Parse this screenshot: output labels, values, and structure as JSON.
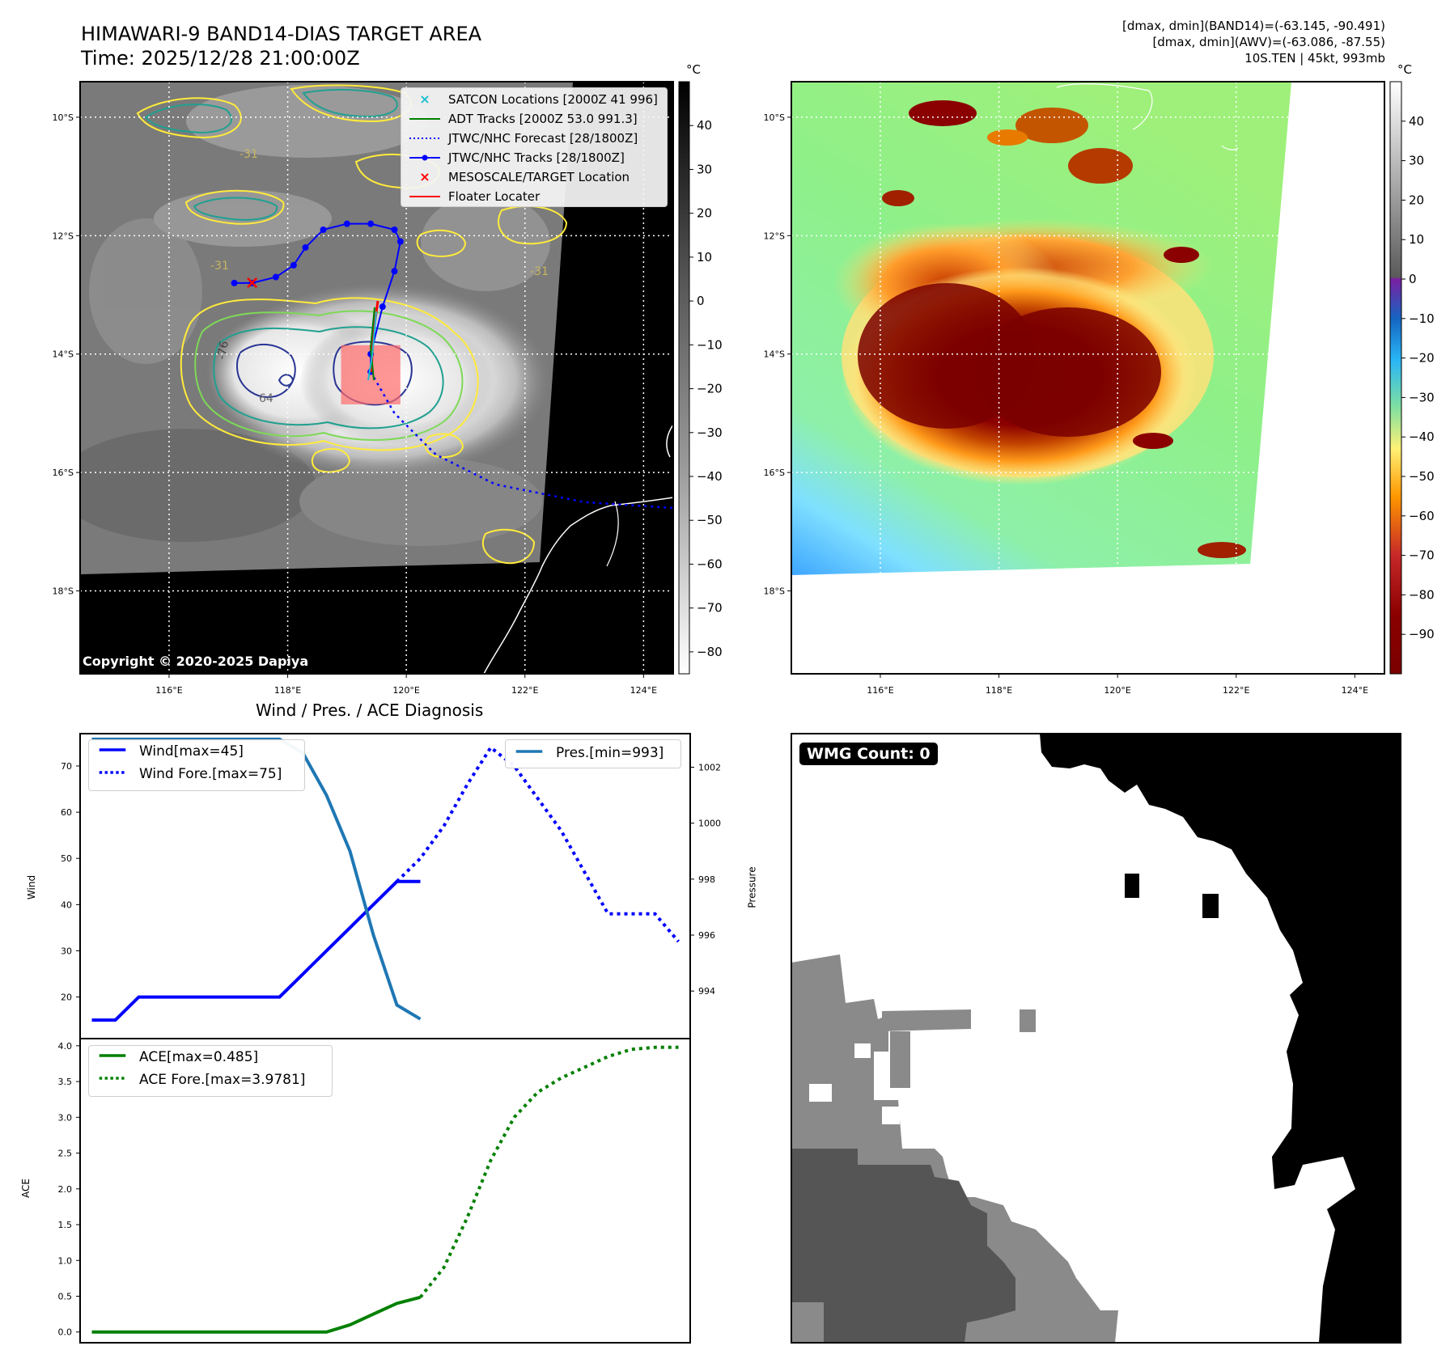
{
  "header": {
    "title_line1": "HIMAWARI-9 BAND14-DIAS TARGET AREA",
    "title_line2": "Time: 2025/12/28 21:00:00Z",
    "info_line1": "[dmax, dmin](BAND14)=(-63.145, -90.491)",
    "info_line2": "[dmax, dmin](AWV)=(-63.086, -87.55)",
    "info_line3": "10S.TEN | 45kt, 993mb"
  },
  "map_axes": {
    "lat_labels": [
      "10°S",
      "12°S",
      "14°S",
      "16°S",
      "18°S"
    ],
    "lon_labels": [
      "116°E",
      "118°E",
      "120°E",
      "122°E",
      "124°E"
    ],
    "lat_ticks": [
      -10,
      -12,
      -14,
      -16,
      -18
    ],
    "lon_ticks": [
      116,
      118,
      120,
      122,
      124
    ],
    "lon_range": [
      114.5,
      124.5
    ],
    "lat_range": [
      -9.4,
      -19.4
    ]
  },
  "ir_panel": {
    "copyright": "Copyright © 2020-2025 Dapiya",
    "colorbar_unit": "°C",
    "colorbar_ticks": [
      "40",
      "30",
      "20",
      "10",
      "0",
      "−10",
      "−20",
      "−30",
      "−40",
      "−50",
      "−60",
      "−70",
      "−80"
    ],
    "colorbar_values": [
      40,
      30,
      20,
      10,
      0,
      -10,
      -20,
      -30,
      -40,
      -50,
      -60,
      -70,
      -80
    ],
    "colorbar_range": [
      50,
      -85
    ],
    "contour_labels": [
      "-76",
      "-64",
      "-31",
      "-31",
      "-31",
      "-31",
      "-76"
    ],
    "legend": [
      {
        "label": "SATCON Locations [2000Z 41 996]",
        "color": "#17becf"
      },
      {
        "label": "ADT Tracks [2000Z 53.0 991.3]",
        "color": "#008000"
      },
      {
        "label": "JTWC/NHC Forecast [28/1800Z]",
        "color": "#0000ff"
      },
      {
        "label": "JTWC/NHC Tracks [28/1800Z]",
        "color": "#0000ff"
      },
      {
        "label": "MESOSCALE/TARGET Location",
        "color": "#ff0000"
      },
      {
        "label": "Floater Locater",
        "color": "#ff0000"
      }
    ],
    "track_jtwc": [
      [
        117.1,
        -12.8
      ],
      [
        117.4,
        -12.8
      ],
      [
        117.8,
        -12.7
      ],
      [
        118.1,
        -12.5
      ],
      [
        118.3,
        -12.2
      ],
      [
        118.6,
        -11.9
      ],
      [
        119.0,
        -11.8
      ],
      [
        119.4,
        -11.8
      ],
      [
        119.8,
        -11.9
      ],
      [
        119.9,
        -12.1
      ],
      [
        119.8,
        -12.6
      ],
      [
        119.6,
        -13.2
      ],
      [
        119.4,
        -14.0
      ],
      [
        119.4,
        -14.3
      ]
    ],
    "track_forecast": [
      [
        119.4,
        -14.3
      ],
      [
        119.8,
        -15.0
      ],
      [
        120.5,
        -15.7
      ],
      [
        121.5,
        -16.2
      ],
      [
        123.0,
        -16.5
      ],
      [
        124.5,
        -16.6
      ]
    ],
    "mesoscale_location": [
      117.4,
      -12.8
    ],
    "target_box": [
      118.9,
      -13.85,
      119.9,
      -14.85
    ]
  },
  "awv_panel": {
    "colorbar_unit": "°C",
    "colorbar_ticks": [
      "40",
      "30",
      "20",
      "10",
      "0",
      "−10",
      "−20",
      "−30",
      "−40",
      "−50",
      "−60",
      "−70",
      "−80",
      "−90"
    ],
    "colorbar_values": [
      40,
      30,
      20,
      10,
      0,
      -10,
      -20,
      -30,
      -40,
      -50,
      -60,
      -70,
      -80,
      -90
    ],
    "colorbar_range": [
      50,
      -100
    ]
  },
  "chart_data": [
    {
      "type": "line",
      "title": "Wind / Pres. / ACE Diagnosis",
      "ylabel": "Wind",
      "ylabel_right": "Pressure",
      "ylim": [
        11,
        77
      ],
      "ylim_right": [
        992.3,
        1003.2
      ],
      "yticks": [
        20,
        30,
        40,
        50,
        60,
        70
      ],
      "yticks_right": [
        994,
        996,
        998,
        1000,
        1002
      ],
      "xlim": [
        -0.5,
        25.5
      ],
      "series": [
        {
          "name": "Wind[max=45]",
          "axis": "left",
          "style": "solid",
          "color": "#0000ff",
          "x": [
            0,
            1,
            2,
            3,
            4,
            5,
            6,
            7,
            8,
            9,
            10,
            11,
            12,
            13,
            14
          ],
          "values": [
            15,
            15,
            20,
            20,
            20,
            20,
            20,
            20,
            20,
            25,
            30,
            35,
            40,
            45,
            45
          ]
        },
        {
          "name": "Wind Fore.[max=75]",
          "axis": "left",
          "style": "dotted",
          "color": "#0000ff",
          "x": [
            13,
            14,
            15,
            16,
            17,
            18,
            19,
            20,
            21,
            22,
            23,
            24,
            25
          ],
          "values": [
            45,
            50,
            57,
            66,
            74,
            70,
            63,
            56,
            47,
            38,
            38,
            38,
            32
          ]
        },
        {
          "name": "Pres.[min=993]",
          "axis": "right",
          "style": "solid",
          "color": "#1f77b4",
          "x": [
            0,
            1,
            2,
            3,
            4,
            5,
            6,
            7,
            8,
            9,
            10,
            11,
            12,
            13,
            14
          ],
          "values": [
            1003,
            1003,
            1003,
            1003,
            1003,
            1003,
            1003,
            1003,
            1003,
            1002.5,
            1001,
            999,
            996,
            993.5,
            993
          ]
        }
      ],
      "legend_left": [
        "Wind[max=45]",
        "Wind Fore.[max=75]"
      ],
      "legend_right": [
        "Pres.[min=993]"
      ]
    },
    {
      "type": "line",
      "ylabel": "ACE",
      "ylim": [
        -0.15,
        4.1
      ],
      "yticks": [
        0.0,
        0.5,
        1.0,
        1.5,
        2.0,
        2.5,
        3.0,
        3.5,
        4.0
      ],
      "ytick_labels": [
        "0.0",
        "0.5",
        "1.0",
        "1.5",
        "2.0",
        "2.5",
        "3.0",
        "3.5",
        "4.0"
      ],
      "xlim": [
        -0.5,
        25.5
      ],
      "series": [
        {
          "name": "ACE[max=0.485]",
          "style": "solid",
          "color": "#008000",
          "x": [
            0,
            1,
            2,
            3,
            4,
            5,
            6,
            7,
            8,
            9,
            10,
            11,
            12,
            13,
            14
          ],
          "values": [
            0,
            0,
            0,
            0,
            0,
            0,
            0,
            0,
            0,
            0,
            0,
            0.1,
            0.25,
            0.4,
            0.485
          ]
        },
        {
          "name": "ACE Fore.[max=3.9781]",
          "style": "dotted",
          "color": "#008000",
          "x": [
            14,
            15,
            16,
            17,
            18,
            19,
            20,
            21,
            22,
            23,
            24,
            25
          ],
          "values": [
            0.485,
            0.9,
            1.6,
            2.4,
            3.0,
            3.35,
            3.55,
            3.7,
            3.85,
            3.95,
            3.9781,
            3.9781
          ]
        }
      ]
    }
  ],
  "wmg_panel": {
    "label": "WMG Count: 0"
  }
}
